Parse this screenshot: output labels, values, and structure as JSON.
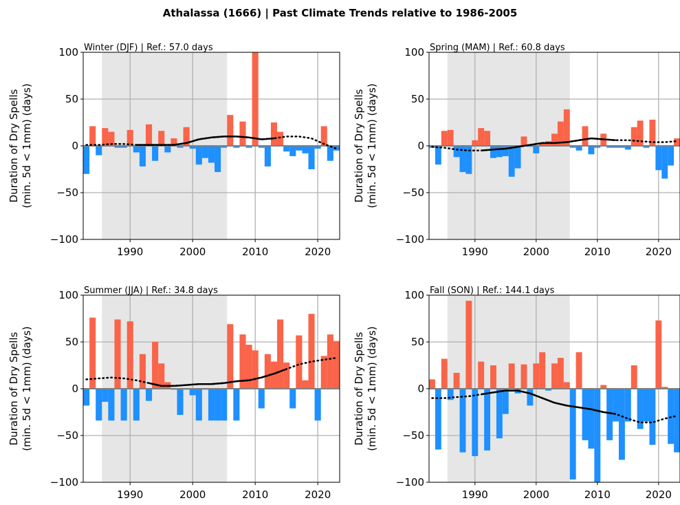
{
  "figure": {
    "title": "Athalassa (1666) | Past Climate Trends relative to 1986-2005"
  },
  "colors": {
    "positive": "#fa6449",
    "negative": "#1e90ff",
    "reference_shade": "#e6e6e6",
    "trend": "#000000"
  },
  "chart_data": [
    {
      "type": "bar",
      "title": "Winter (DJF) | Ref.: 57.0 days",
      "ylabel_line1": "Duration of Dry Spells",
      "ylabel_line2": "(min. 5d < 1mm) (days)",
      "xlim": [
        1982.5,
        2023.5
      ],
      "ylim": [
        -100,
        100
      ],
      "yticks": [
        "100",
        "50",
        "0",
        "−50",
        "−100"
      ],
      "xticks": [
        "1990",
        "2000",
        "2010",
        "2020"
      ],
      "reference_period": [
        1986,
        2005
      ],
      "x": [
        1983,
        1984,
        1985,
        1986,
        1987,
        1988,
        1989,
        1990,
        1991,
        1992,
        1993,
        1994,
        1995,
        1996,
        1997,
        1998,
        1999,
        2000,
        2001,
        2002,
        2003,
        2004,
        2005,
        2006,
        2007,
        2008,
        2009,
        2010,
        2011,
        2012,
        2013,
        2014,
        2015,
        2016,
        2017,
        2018,
        2019,
        2020,
        2021,
        2022,
        2023
      ],
      "values": [
        -30,
        21,
        -10,
        19,
        15,
        -2,
        -2,
        17,
        -7,
        -22,
        23,
        -16,
        16,
        -7,
        8,
        -2,
        20,
        -3,
        -20,
        -13,
        -18,
        -28,
        -2,
        33,
        -2,
        26,
        -2,
        100,
        -2,
        -22,
        25,
        15,
        -6,
        -11,
        -5,
        -8,
        -25,
        -3,
        21,
        -16,
        -5
      ],
      "trend_x": [
        1983,
        1985,
        1987,
        1989,
        1991,
        1993,
        1995,
        1997,
        1999,
        2001,
        2003,
        2005,
        2007,
        2009,
        2011,
        2013,
        2015,
        2017,
        2019,
        2021,
        2023
      ],
      "trend_y": [
        1,
        1,
        2,
        2,
        1,
        1,
        1,
        1,
        3,
        7,
        9,
        10,
        10,
        9,
        7,
        8,
        10,
        10,
        8,
        2,
        -3
      ],
      "trend_solid_from": 1990,
      "trend_solid_to": 2014
    },
    {
      "type": "bar",
      "title": "Spring (MAM) | Ref.: 60.8 days",
      "ylabel_line1": "Duration of Dry Spells",
      "ylabel_line2": "(min. 5d < 1mm) (days)",
      "xlim": [
        1982.5,
        2023.5
      ],
      "ylim": [
        -100,
        100
      ],
      "yticks": [
        "100",
        "50",
        "0",
        "−50",
        "−100"
      ],
      "xticks": [
        "1990",
        "2000",
        "2010",
        "2020"
      ],
      "reference_period": [
        1986,
        2005
      ],
      "x": [
        1983,
        1984,
        1985,
        1986,
        1987,
        1988,
        1989,
        1990,
        1991,
        1992,
        1993,
        1994,
        1995,
        1996,
        1997,
        1998,
        1999,
        2000,
        2001,
        2002,
        2003,
        2004,
        2005,
        2006,
        2007,
        2008,
        2009,
        2010,
        2011,
        2012,
        2013,
        2014,
        2015,
        2016,
        2017,
        2018,
        2019,
        2020,
        2021,
        2022,
        2023
      ],
      "values": [
        -2,
        -20,
        16,
        17,
        -12,
        -28,
        -30,
        6,
        19,
        16,
        -13,
        -12,
        -11,
        -33,
        -24,
        10,
        -1,
        -8,
        3,
        5,
        13,
        26,
        39,
        -2,
        -5,
        21,
        -9,
        -2,
        13,
        -2,
        -2,
        -2,
        -4,
        20,
        27,
        -2,
        28,
        -26,
        -35,
        -21,
        8
      ],
      "trend_x": [
        1983,
        1985,
        1987,
        1989,
        1991,
        1993,
        1995,
        1997,
        1999,
        2001,
        2003,
        2005,
        2007,
        2009,
        2011,
        2013,
        2015,
        2017,
        2019,
        2021,
        2023
      ],
      "trend_y": [
        -1,
        -2,
        -4,
        -5,
        -5,
        -4,
        -3,
        -1,
        1,
        3,
        3,
        4,
        6,
        8,
        7,
        6,
        6,
        5,
        4,
        4,
        5
      ],
      "trend_solid_from": 1990,
      "trend_solid_to": 2014
    },
    {
      "type": "bar",
      "title": "Summer (JJA) | Ref.: 34.8 days",
      "ylabel_line1": "Duration of Dry Spells",
      "ylabel_line2": "(min. 5d < 1mm) (days)",
      "xlim": [
        1982.5,
        2023.5
      ],
      "ylim": [
        -100,
        100
      ],
      "yticks": [
        "100",
        "50",
        "0",
        "−50",
        "−100"
      ],
      "xticks": [
        "1990",
        "2000",
        "2010",
        "2020"
      ],
      "reference_period": [
        1986,
        2005
      ],
      "x": [
        1983,
        1984,
        1985,
        1986,
        1987,
        1988,
        1989,
        1990,
        1991,
        1992,
        1993,
        1994,
        1995,
        1996,
        1997,
        1998,
        1999,
        2000,
        2001,
        2002,
        2003,
        2004,
        2005,
        2006,
        2007,
        2008,
        2009,
        2010,
        2011,
        2012,
        2013,
        2014,
        2015,
        2016,
        2017,
        2018,
        2019,
        2020,
        2021,
        2022,
        2023
      ],
      "values": [
        -18,
        76,
        -34,
        -14,
        -34,
        74,
        -34,
        72,
        -34,
        37,
        -13,
        50,
        27,
        7,
        -1,
        -28,
        -1,
        -7,
        -34,
        -1,
        -34,
        -34,
        -34,
        69,
        -34,
        58,
        47,
        41,
        -21,
        37,
        29,
        74,
        28,
        -21,
        57,
        9,
        80,
        -34,
        35,
        58,
        51
      ],
      "trend_x": [
        1983,
        1985,
        1987,
        1989,
        1991,
        1993,
        1995,
        1997,
        1999,
        2001,
        2003,
        2005,
        2007,
        2009,
        2011,
        2013,
        2015,
        2017,
        2019,
        2021,
        2023
      ],
      "trend_y": [
        10,
        11,
        12,
        11,
        9,
        6,
        3,
        3,
        4,
        5,
        5,
        6,
        8,
        9,
        12,
        16,
        21,
        26,
        29,
        31,
        33
      ],
      "trend_solid_from": 1993,
      "trend_solid_to": 2016
    },
    {
      "type": "bar",
      "title": "Fall (SON) | Ref.: 144.1 days",
      "ylabel_line1": "Duration of Dry Spells",
      "ylabel_line2": "(min. 5d < 1mm) (days)",
      "xlim": [
        1982.5,
        2023.5
      ],
      "ylim": [
        -100,
        100
      ],
      "yticks": [
        "100",
        "50",
        "0",
        "−50",
        "−100"
      ],
      "xticks": [
        "1990",
        "2000",
        "2010",
        "2020"
      ],
      "reference_period": [
        1986,
        2005
      ],
      "x": [
        1983,
        1984,
        1985,
        1986,
        1987,
        1988,
        1989,
        1990,
        1991,
        1992,
        1993,
        1994,
        1995,
        1996,
        1997,
        1998,
        1999,
        2000,
        2001,
        2002,
        2003,
        2004,
        2005,
        2006,
        2007,
        2008,
        2009,
        2010,
        2011,
        2012,
        2013,
        2014,
        2015,
        2016,
        2017,
        2018,
        2019,
        2020,
        2021,
        2022,
        2023
      ],
      "values": [
        10,
        -65,
        32,
        -12,
        17,
        -68,
        94,
        -72,
        29,
        -66,
        25,
        -53,
        -27,
        27,
        -5,
        26,
        -18,
        27,
        39,
        -2,
        27,
        33,
        7,
        -97,
        39,
        -55,
        -64,
        -100,
        4,
        -55,
        -35,
        -76,
        -35,
        25,
        -43,
        -35,
        -60,
        73,
        2,
        -59,
        -68
      ],
      "trend_x": [
        1983,
        1985,
        1987,
        1989,
        1991,
        1993,
        1995,
        1997,
        1999,
        2001,
        2003,
        2005,
        2007,
        2009,
        2011,
        2013,
        2015,
        2017,
        2019,
        2021,
        2023
      ],
      "trend_y": [
        -10,
        -10,
        -9,
        -8,
        -6,
        -4,
        -2,
        -2,
        -5,
        -10,
        -15,
        -18,
        -20,
        -22,
        -25,
        -27,
        -32,
        -36,
        -36,
        -32,
        -29
      ],
      "trend_solid_from": 1990,
      "trend_solid_to": 2014
    }
  ]
}
